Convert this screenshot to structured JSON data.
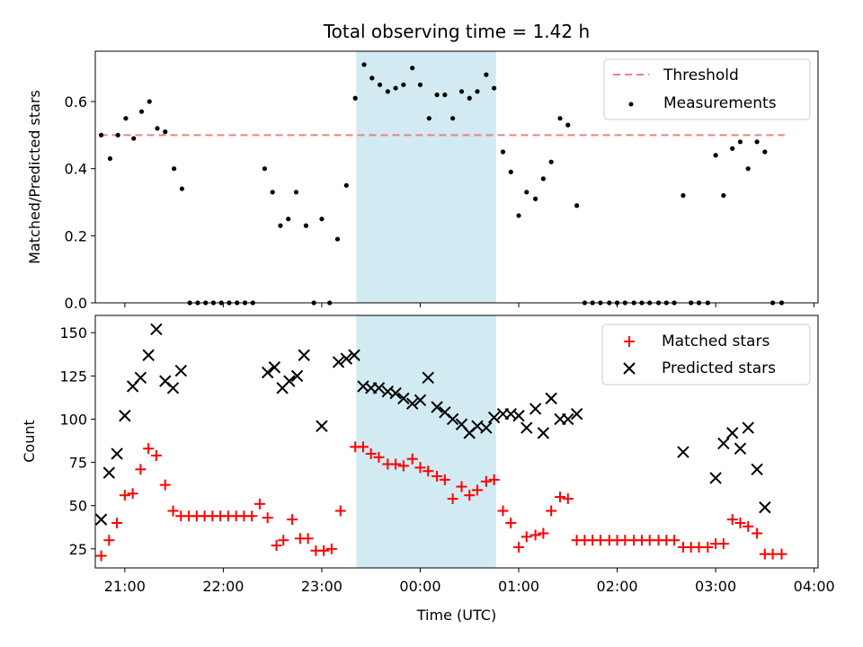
{
  "chart_data": [
    {
      "type": "scatter",
      "title": "Total observing time = 1.42 h",
      "xlabel": "",
      "ylabel": "Matched/Predicted stars",
      "xlim": [
        -3.3,
        4.04
      ],
      "ylim": [
        0,
        0.75
      ],
      "yticks": [
        0.0,
        0.2,
        0.4,
        0.6
      ],
      "ytick_labels": [
        "0.0",
        "0.2",
        "0.4",
        "0.6"
      ],
      "legend": {
        "position": "top-right",
        "entries": [
          {
            "name": "Threshold",
            "kind": "dashed-line",
            "color": "#f08080"
          },
          {
            "name": "Measurements",
            "kind": "dot",
            "color": "#000000"
          }
        ]
      },
      "threshold": {
        "name": "Threshold",
        "value": 0.5,
        "x": [
          -3.25,
          3.7
        ],
        "color": "#f08080"
      },
      "highlight": {
        "x": [
          -0.65,
          0.77
        ],
        "color": "#add8e6"
      },
      "series": [
        {
          "name": "Measurements",
          "color": "#000000",
          "points": [
            [
              -3.24,
              0.5
            ],
            [
              -3.15,
              0.43
            ],
            [
              -3.07,
              0.5
            ],
            [
              -2.99,
              0.55
            ],
            [
              -2.91,
              0.49
            ],
            [
              -2.83,
              0.57
            ],
            [
              -2.75,
              0.6
            ],
            [
              -2.67,
              0.52
            ],
            [
              -2.59,
              0.51
            ],
            [
              -2.5,
              0.4
            ],
            [
              -2.42,
              0.34
            ],
            [
              -2.34,
              0.0
            ],
            [
              -2.26,
              0.0
            ],
            [
              -2.18,
              0.0
            ],
            [
              -2.1,
              0.0
            ],
            [
              -2.02,
              0.0
            ],
            [
              -1.94,
              0.0
            ],
            [
              -1.86,
              0.0
            ],
            [
              -1.78,
              0.0
            ],
            [
              -1.7,
              0.0
            ],
            [
              -1.58,
              0.4
            ],
            [
              -1.5,
              0.33
            ],
            [
              -1.42,
              0.23
            ],
            [
              -1.34,
              0.25
            ],
            [
              -1.26,
              0.33
            ],
            [
              -1.16,
              0.23
            ],
            [
              -1.08,
              0.0
            ],
            [
              -1.0,
              0.25
            ],
            [
              -0.92,
              0.0
            ],
            [
              -0.84,
              0.19
            ],
            [
              -0.75,
              0.35
            ],
            [
              -0.66,
              0.61
            ],
            [
              -0.57,
              0.71
            ],
            [
              -0.49,
              0.67
            ],
            [
              -0.41,
              0.65
            ],
            [
              -0.33,
              0.63
            ],
            [
              -0.25,
              0.64
            ],
            [
              -0.17,
              0.65
            ],
            [
              -0.08,
              0.7
            ],
            [
              0.0,
              0.65
            ],
            [
              0.09,
              0.55
            ],
            [
              0.17,
              0.62
            ],
            [
              0.25,
              0.62
            ],
            [
              0.33,
              0.55
            ],
            [
              0.42,
              0.63
            ],
            [
              0.5,
              0.61
            ],
            [
              0.58,
              0.63
            ],
            [
              0.67,
              0.68
            ],
            [
              0.75,
              0.64
            ],
            [
              0.84,
              0.45
            ],
            [
              0.92,
              0.39
            ],
            [
              1.0,
              0.26
            ],
            [
              1.08,
              0.33
            ],
            [
              1.17,
              0.31
            ],
            [
              1.25,
              0.37
            ],
            [
              1.33,
              0.42
            ],
            [
              1.42,
              0.55
            ],
            [
              1.5,
              0.53
            ],
            [
              1.59,
              0.29
            ],
            [
              1.67,
              0.0
            ],
            [
              1.75,
              0.0
            ],
            [
              1.83,
              0.0
            ],
            [
              1.92,
              0.0
            ],
            [
              2.0,
              0.0
            ],
            [
              2.08,
              0.0
            ],
            [
              2.17,
              0.0
            ],
            [
              2.25,
              0.0
            ],
            [
              2.33,
              0.0
            ],
            [
              2.42,
              0.0
            ],
            [
              2.5,
              0.0
            ],
            [
              2.58,
              0.0
            ],
            [
              2.67,
              0.32
            ],
            [
              2.75,
              0.0
            ],
            [
              2.83,
              0.0
            ],
            [
              2.92,
              0.0
            ],
            [
              3.0,
              0.44
            ],
            [
              3.08,
              0.32
            ],
            [
              3.17,
              0.46
            ],
            [
              3.25,
              0.48
            ],
            [
              3.33,
              0.4
            ],
            [
              3.42,
              0.48
            ],
            [
              3.5,
              0.45
            ],
            [
              3.58,
              0.0
            ],
            [
              3.67,
              0.0
            ]
          ]
        }
      ]
    },
    {
      "type": "scatter",
      "title": "",
      "xlabel": "Time (UTC)",
      "ylabel": "Count",
      "xlim": [
        -3.3,
        4.04
      ],
      "ylim": [
        14,
        160
      ],
      "yticks": [
        25,
        50,
        75,
        100,
        125,
        150
      ],
      "ytick_labels": [
        "25",
        "50",
        "75",
        "100",
        "125",
        "150"
      ],
      "xticks": [
        -3,
        -2,
        -1,
        0,
        1,
        2,
        3,
        4
      ],
      "xtick_labels": [
        "21:00",
        "22:00",
        "23:00",
        "00:00",
        "01:00",
        "02:00",
        "03:00",
        "04:00"
      ],
      "legend": {
        "position": "top-right",
        "entries": [
          {
            "name": "Matched stars",
            "kind": "plus",
            "color": "#ff0000"
          },
          {
            "name": "Predicted stars",
            "kind": "cross",
            "color": "#000000"
          }
        ]
      },
      "highlight": {
        "x": [
          -0.65,
          0.77
        ],
        "color": "#add8e6"
      },
      "series": [
        {
          "name": "Matched stars",
          "marker": "plus",
          "color": "#ff0000",
          "points": [
            [
              -3.24,
              21
            ],
            [
              -3.16,
              30
            ],
            [
              -3.08,
              40
            ],
            [
              -3.0,
              56
            ],
            [
              -2.92,
              57
            ],
            [
              -2.84,
              71
            ],
            [
              -2.76,
              83
            ],
            [
              -2.68,
              79
            ],
            [
              -2.59,
              62
            ],
            [
              -2.51,
              47
            ],
            [
              -2.43,
              44
            ],
            [
              -2.35,
              44
            ],
            [
              -2.27,
              44
            ],
            [
              -2.19,
              44
            ],
            [
              -2.11,
              44
            ],
            [
              -2.03,
              44
            ],
            [
              -1.95,
              44
            ],
            [
              -1.87,
              44
            ],
            [
              -1.79,
              44
            ],
            [
              -1.71,
              44
            ],
            [
              -1.63,
              51
            ],
            [
              -1.55,
              43
            ],
            [
              -1.46,
              27
            ],
            [
              -1.39,
              30
            ],
            [
              -1.3,
              42
            ],
            [
              -1.22,
              31
            ],
            [
              -1.14,
              31
            ],
            [
              -1.06,
              24
            ],
            [
              -0.98,
              24
            ],
            [
              -0.9,
              25
            ],
            [
              -0.81,
              47
            ],
            [
              -0.66,
              84
            ],
            [
              -0.58,
              84
            ],
            [
              -0.5,
              80
            ],
            [
              -0.42,
              78
            ],
            [
              -0.33,
              74
            ],
            [
              -0.25,
              74
            ],
            [
              -0.17,
              73
            ],
            [
              -0.08,
              77
            ],
            [
              0.0,
              72
            ],
            [
              0.08,
              70
            ],
            [
              0.17,
              67
            ],
            [
              0.25,
              65
            ],
            [
              0.33,
              54
            ],
            [
              0.42,
              61
            ],
            [
              0.5,
              56
            ],
            [
              0.58,
              59
            ],
            [
              0.67,
              64
            ],
            [
              0.75,
              65
            ],
            [
              0.84,
              47
            ],
            [
              0.92,
              40
            ],
            [
              1.0,
              26
            ],
            [
              1.08,
              32
            ],
            [
              1.17,
              33
            ],
            [
              1.25,
              34
            ],
            [
              1.33,
              47
            ],
            [
              1.42,
              55
            ],
            [
              1.5,
              54
            ],
            [
              1.59,
              30
            ],
            [
              1.67,
              30
            ],
            [
              1.75,
              30
            ],
            [
              1.83,
              30
            ],
            [
              1.92,
              30
            ],
            [
              2.0,
              30
            ],
            [
              2.08,
              30
            ],
            [
              2.17,
              30
            ],
            [
              2.25,
              30
            ],
            [
              2.33,
              30
            ],
            [
              2.42,
              30
            ],
            [
              2.5,
              30
            ],
            [
              2.58,
              30
            ],
            [
              2.67,
              26
            ],
            [
              2.75,
              26
            ],
            [
              2.83,
              26
            ],
            [
              2.92,
              26
            ],
            [
              3.0,
              28
            ],
            [
              3.08,
              28
            ],
            [
              3.17,
              42
            ],
            [
              3.25,
              40
            ],
            [
              3.33,
              38
            ],
            [
              3.42,
              34
            ],
            [
              3.5,
              22
            ],
            [
              3.58,
              22
            ],
            [
              3.67,
              22
            ]
          ]
        },
        {
          "name": "Predicted stars",
          "marker": "cross",
          "color": "#000000",
          "points": [
            [
              -3.24,
              42
            ],
            [
              -3.16,
              69
            ],
            [
              -3.08,
              80
            ],
            [
              -3.0,
              102
            ],
            [
              -2.92,
              119
            ],
            [
              -2.84,
              124
            ],
            [
              -2.76,
              137
            ],
            [
              -2.68,
              152
            ],
            [
              -2.59,
              122
            ],
            [
              -2.51,
              118
            ],
            [
              -2.43,
              128
            ],
            [
              -1.55,
              127
            ],
            [
              -1.48,
              130
            ],
            [
              -1.4,
              118
            ],
            [
              -1.33,
              122
            ],
            [
              -1.25,
              125
            ],
            [
              -1.18,
              137
            ],
            [
              -1.0,
              96
            ],
            [
              -0.83,
              133
            ],
            [
              -0.75,
              135
            ],
            [
              -0.67,
              137
            ],
            [
              -0.58,
              119
            ],
            [
              -0.5,
              118
            ],
            [
              -0.42,
              118
            ],
            [
              -0.33,
              116
            ],
            [
              -0.25,
              115
            ],
            [
              -0.17,
              112
            ],
            [
              -0.08,
              109
            ],
            [
              0.0,
              111
            ],
            [
              0.08,
              124
            ],
            [
              0.17,
              107
            ],
            [
              0.25,
              104
            ],
            [
              0.33,
              100
            ],
            [
              0.42,
              97
            ],
            [
              0.5,
              92
            ],
            [
              0.58,
              96
            ],
            [
              0.67,
              95
            ],
            [
              0.75,
              101
            ],
            [
              0.84,
              103
            ],
            [
              0.92,
              103
            ],
            [
              1.0,
              102
            ],
            [
              1.08,
              95
            ],
            [
              1.17,
              106
            ],
            [
              1.25,
              92
            ],
            [
              1.33,
              112
            ],
            [
              1.42,
              100
            ],
            [
              1.5,
              100
            ],
            [
              1.59,
              103
            ],
            [
              2.67,
              81
            ],
            [
              3.0,
              66
            ],
            [
              3.08,
              86
            ],
            [
              3.17,
              92
            ],
            [
              3.25,
              83
            ],
            [
              3.33,
              95
            ],
            [
              3.42,
              71
            ],
            [
              3.5,
              49
            ]
          ]
        }
      ]
    }
  ]
}
